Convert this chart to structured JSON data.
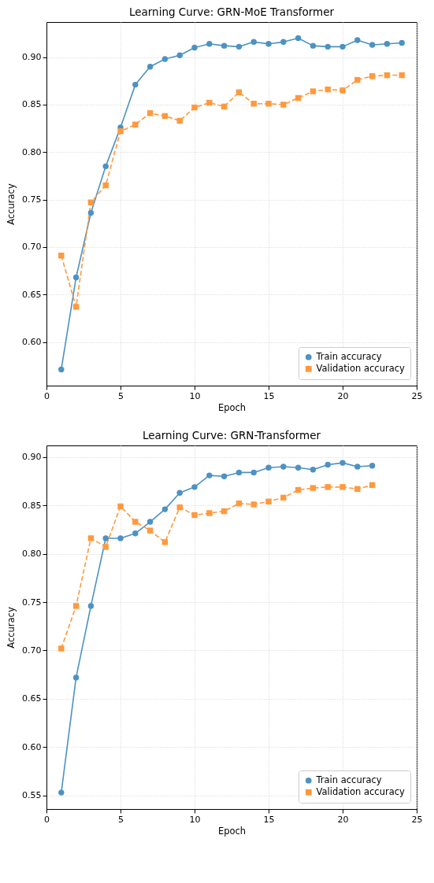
{
  "chart_data": [
    {
      "type": "line",
      "title": "Learning Curve: GRN-MoE Transformer",
      "xlabel": "Epoch",
      "ylabel": "Accuracy",
      "x": [
        1,
        2,
        3,
        4,
        5,
        6,
        7,
        8,
        9,
        10,
        11,
        12,
        13,
        14,
        15,
        16,
        17,
        18,
        19,
        20,
        21,
        22,
        23,
        24
      ],
      "series": [
        {
          "name": "Train accuracy",
          "color": "#4c92c3",
          "marker": "circle",
          "line_style": "solid",
          "values": [
            0.571,
            0.668,
            0.736,
            0.785,
            0.826,
            0.871,
            0.89,
            0.898,
            0.902,
            0.91,
            0.914,
            0.912,
            0.911,
            0.916,
            0.914,
            0.916,
            0.92,
            0.912,
            0.911,
            0.911,
            0.918,
            0.913,
            0.914,
            0.915
          ]
        },
        {
          "name": "Validation accuracy",
          "color": "#ff993e",
          "marker": "square",
          "line_style": "dashed",
          "values": [
            0.691,
            0.637,
            0.747,
            0.765,
            0.822,
            0.829,
            0.841,
            0.838,
            0.833,
            0.847,
            0.852,
            0.848,
            0.863,
            0.851,
            0.851,
            0.85,
            0.857,
            0.864,
            0.866,
            0.865,
            0.876,
            0.88,
            0.881,
            0.881
          ]
        }
      ],
      "xlim": [
        0,
        25
      ],
      "xticks": [
        0,
        5,
        10,
        15,
        20,
        25
      ],
      "ylim": [
        0.554,
        0.937
      ],
      "yticks": [
        {
          "value": 0.6,
          "label": "0.60"
        },
        {
          "value": 0.65,
          "label": "0.65"
        },
        {
          "value": 0.7,
          "label": "0.70"
        },
        {
          "value": 0.75,
          "label": "0.75"
        },
        {
          "value": 0.8,
          "label": "0.80"
        },
        {
          "value": 0.85,
          "label": "0.85"
        },
        {
          "value": 0.9,
          "label": "0.90"
        }
      ],
      "grid": true,
      "legend": "bottom right"
    },
    {
      "type": "line",
      "title": "Learning Curve: GRN-Transformer",
      "xlabel": "Epoch",
      "ylabel": "Accuracy",
      "x": [
        1,
        2,
        3,
        4,
        5,
        6,
        7,
        8,
        9,
        10,
        11,
        12,
        13,
        14,
        15,
        16,
        17,
        18,
        19,
        20,
        21,
        22
      ],
      "series": [
        {
          "name": "Train accuracy",
          "color": "#4c92c3",
          "marker": "circle",
          "line_style": "solid",
          "values": [
            0.553,
            0.672,
            0.746,
            0.816,
            0.816,
            0.821,
            0.833,
            0.846,
            0.863,
            0.869,
            0.881,
            0.88,
            0.884,
            0.884,
            0.889,
            0.89,
            0.889,
            0.887,
            0.892,
            0.894,
            0.89,
            0.891
          ]
        },
        {
          "name": "Validation accuracy",
          "color": "#ff993e",
          "marker": "square",
          "line_style": "dashed",
          "values": [
            0.702,
            0.746,
            0.816,
            0.807,
            0.849,
            0.833,
            0.824,
            0.812,
            0.848,
            0.84,
            0.842,
            0.844,
            0.852,
            0.851,
            0.854,
            0.858,
            0.866,
            0.868,
            0.869,
            0.869,
            0.867,
            0.871
          ]
        }
      ],
      "xlim": [
        0,
        25
      ],
      "xticks": [
        0,
        5,
        10,
        15,
        20,
        25
      ],
      "ylim": [
        0.536,
        0.912
      ],
      "yticks": [
        {
          "value": 0.55,
          "label": "0.55"
        },
        {
          "value": 0.6,
          "label": "0.60"
        },
        {
          "value": 0.65,
          "label": "0.65"
        },
        {
          "value": 0.7,
          "label": "0.70"
        },
        {
          "value": 0.75,
          "label": "0.75"
        },
        {
          "value": 0.8,
          "label": "0.80"
        },
        {
          "value": 0.85,
          "label": "0.85"
        },
        {
          "value": 0.9,
          "label": "0.90"
        }
      ],
      "grid": true,
      "legend": "bottom right"
    }
  ]
}
